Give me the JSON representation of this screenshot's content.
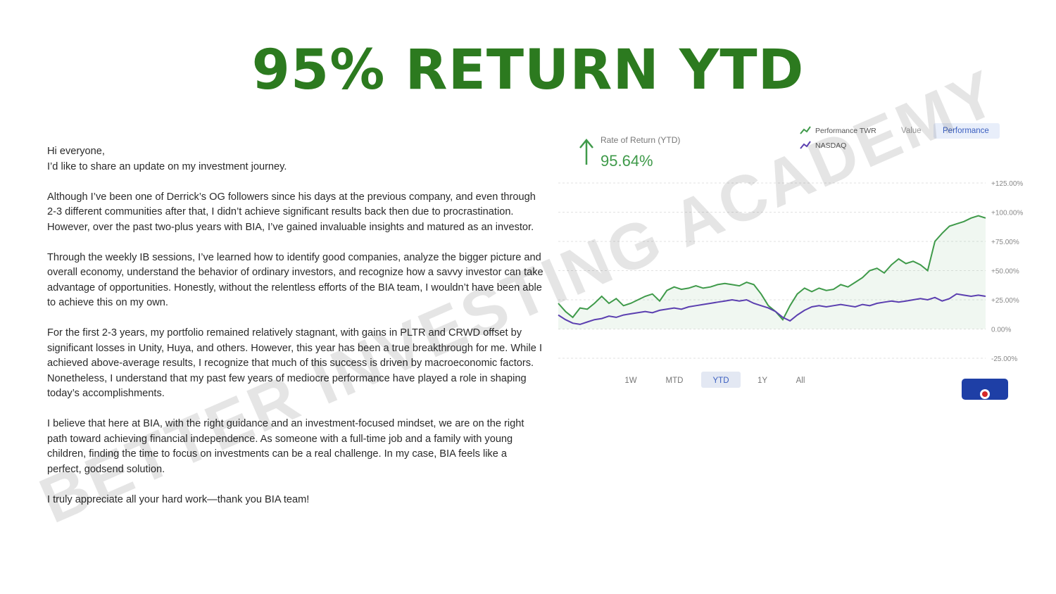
{
  "header": {
    "title": "95% RETURN YTD"
  },
  "letter": {
    "paragraphs": [
      [
        "Hi everyone,",
        "I’d like to share an update on my investment journey."
      ],
      [
        "Although I’ve been one of Derrick’s OG followers since his days at the previous company, and even through 2-3 different communities after that, I didn’t achieve significant results back then due to procrastination. However, over the past two-plus years with BIA, I’ve gained invaluable insights and matured as an investor."
      ],
      [
        "Through the weekly IB sessions, I’ve learned how to identify good companies, analyze the bigger picture and overall economy, understand the behavior of ordinary investors, and recognize how a savvy investor can take advantage of opportunities. Honestly, without the relentless efforts of the BIA team, I wouldn’t have been able to achieve this on my own."
      ],
      [
        "For the first 2-3 years, my portfolio remained relatively stagnant, with gains in PLTR and CRWD offset by significant losses in Unity, Huya, and others. However, this year has been a true breakthrough for me. While I achieved above-average results, I recognize that much of this success is driven by macroeconomic factors. Nonetheless, I understand that my past few years of mediocre performance have played a role in shaping today’s accomplishments."
      ],
      [
        "I believe that here at BIA, with the right guidance and an investment-focused mindset, we are on the right path toward achieving financial independence. As someone with a full-time job and a family with young children, finding the time to focus on investments can be a real challenge. In my case, BIA feels like a perfect, godsend solution."
      ],
      [
        "I truly appreciate all your hard work—thank you BIA team!"
      ]
    ]
  },
  "watermark": "BETTER INVESTING ACADEMY",
  "chart_data": {
    "type": "line",
    "summary_label": "Rate of Return (YTD)",
    "summary_value": "95.64%",
    "view_buttons": [
      "Value",
      "Performance"
    ],
    "range_buttons": [
      "1W",
      "MTD",
      "YTD",
      "1Y",
      "All"
    ],
    "ylim": [
      -25,
      125
    ],
    "yticks": [
      {
        "value": 125,
        "label": "+125.00%"
      },
      {
        "value": 100,
        "label": "+100.00%"
      },
      {
        "value": 75,
        "label": "+75.00%"
      },
      {
        "value": 50,
        "label": "+50.00%"
      },
      {
        "value": 25,
        "label": "+25.00%"
      },
      {
        "value": 0,
        "label": "0.00%"
      },
      {
        "value": -25,
        "label": "-25.00%"
      }
    ],
    "grid": true,
    "series": [
      {
        "name": "Performance TWR",
        "color": "#3f9a4a",
        "values": [
          22,
          15,
          10,
          18,
          17,
          22,
          28,
          22,
          26,
          20,
          22,
          25,
          28,
          30,
          24,
          33,
          36,
          34,
          35,
          37,
          35,
          36,
          38,
          39,
          38,
          37,
          40,
          38,
          30,
          20,
          15,
          8,
          20,
          30,
          35,
          32,
          35,
          33,
          34,
          38,
          36,
          40,
          44,
          50,
          52,
          48,
          55,
          60,
          56,
          58,
          55,
          50,
          75,
          82,
          88,
          90,
          92,
          95,
          97,
          95
        ]
      },
      {
        "name": "NASDAQ",
        "color": "#5b3fb0",
        "values": [
          12,
          8,
          5,
          4,
          6,
          8,
          9,
          11,
          10,
          12,
          13,
          14,
          15,
          14,
          16,
          17,
          18,
          17,
          19,
          20,
          21,
          22,
          23,
          24,
          25,
          24,
          25,
          22,
          20,
          18,
          15,
          10,
          7,
          12,
          16,
          19,
          20,
          19,
          20,
          21,
          20,
          19,
          21,
          20,
          22,
          23,
          24,
          23,
          24,
          25,
          26,
          25,
          27,
          24,
          26,
          30,
          29,
          28,
          29,
          28
        ]
      }
    ]
  }
}
